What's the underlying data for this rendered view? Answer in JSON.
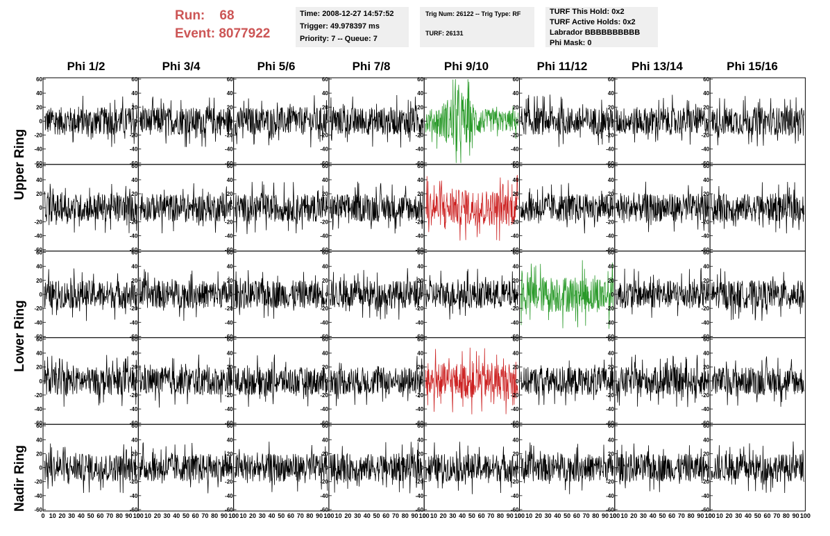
{
  "header": {
    "run_label": "Run:",
    "run_value": "68",
    "event_label": "Event:",
    "event_value": "8077922"
  },
  "info_boxes": {
    "time": "Time: 2008-12-27 14:57:52",
    "trigger": "Trigger: 49.978397 ms",
    "priority": "Priority: 7 -- Queue: 7",
    "trig_num": "Trig Num: 26122 -- Trig Type: RF",
    "turf": "TURF: 26131",
    "turf_this_hold": "TURF This Hold: 0x2",
    "turf_active_holds": "TURF Active Holds: 0x2",
    "labrador": "Labrador BBBBBBBBBB",
    "phi_mask": "Phi Mask: 0"
  },
  "phi_headers": [
    "Phi 1/2",
    "Phi 3/4",
    "Phi 5/6",
    "Phi 7/8",
    "Phi 9/10",
    "Phi 11/12",
    "Phi 13/14",
    "Phi 15/16"
  ],
  "ring_labels": [
    "Upper Ring",
    "Lower Ring",
    "Nadir Ring"
  ],
  "axes": {
    "y_ticks": [
      "60",
      "40",
      "20",
      "0",
      "-20",
      "-40",
      "-60"
    ],
    "x_ticks": [
      "0",
      "10",
      "20",
      "30",
      "40",
      "50",
      "60",
      "70",
      "80",
      "90",
      "100"
    ]
  },
  "colors": {
    "run_text": "#cc5555",
    "default_trace": "#000000",
    "triggered_h": "#2a9a2a",
    "triggered_v": "#cc2222",
    "info_bg": "#efefef"
  },
  "highlighted_traces": [
    {
      "row": 0,
      "col": 4,
      "color": "green"
    },
    {
      "row": 1,
      "col": 4,
      "color": "red"
    },
    {
      "row": 2,
      "col": 5,
      "color": "green"
    },
    {
      "row": 3,
      "col": 4,
      "color": "red"
    }
  ]
}
